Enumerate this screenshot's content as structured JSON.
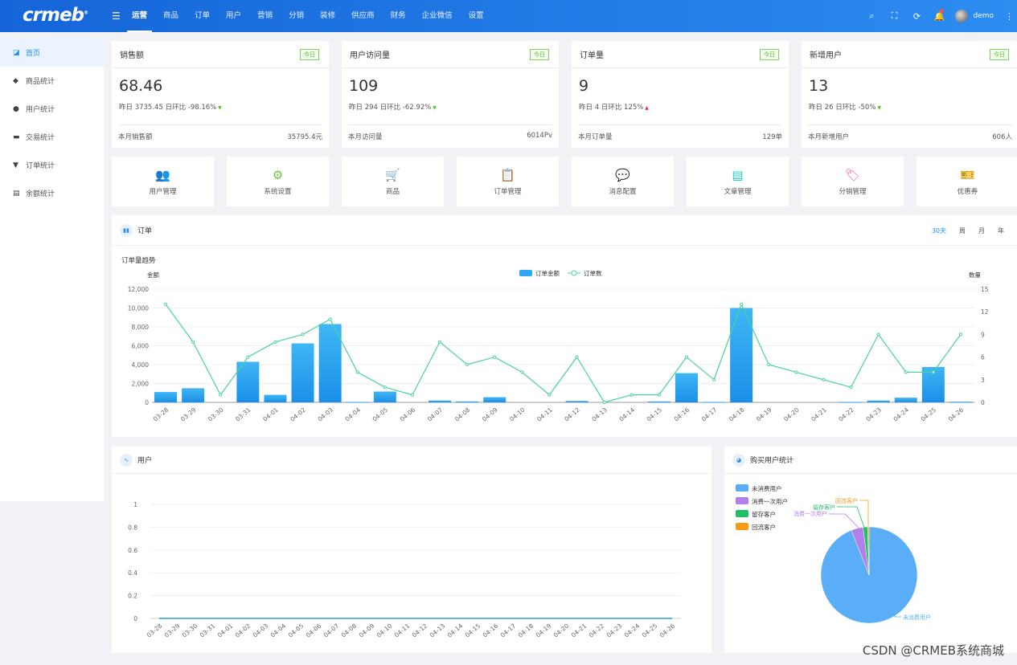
{
  "app": {
    "logo": "crmeb",
    "user": "demo"
  },
  "nav": [
    "运营",
    "商品",
    "订单",
    "用户",
    "营销",
    "分销",
    "装修",
    "供应商",
    "财务",
    "企业微信",
    "设置"
  ],
  "sidebar": [
    {
      "label": "首页",
      "icon": "dashboard-icon"
    },
    {
      "label": "商品统计",
      "icon": "bag-icon"
    },
    {
      "label": "用户统计",
      "icon": "user-icon"
    },
    {
      "label": "交易统计",
      "icon": "trade-icon"
    },
    {
      "label": "订单统计",
      "icon": "cart-icon"
    },
    {
      "label": "余额统计",
      "icon": "wallet-icon"
    }
  ],
  "stats": [
    {
      "title": "销售额",
      "badge": "今日",
      "value": "68.46",
      "yesterday": "昨日 3735.45",
      "ratio": "日环比 -98.16%",
      "trend": "down",
      "month_label": "本月销售额",
      "month_value": "35795.4元"
    },
    {
      "title": "用户访问量",
      "badge": "今日",
      "value": "109",
      "yesterday": "昨日 294",
      "ratio": "日环比 -62.92%",
      "trend": "down",
      "month_label": "本月访问量",
      "month_value": "6014Pv"
    },
    {
      "title": "订单量",
      "badge": "今日",
      "value": "9",
      "yesterday": "昨日 4",
      "ratio": "日环比 125%",
      "trend": "up",
      "month_label": "本月订单量",
      "month_value": "129单"
    },
    {
      "title": "新增用户",
      "badge": "今日",
      "value": "13",
      "yesterday": "昨日 26",
      "ratio": "日环比 -50%",
      "trend": "down",
      "month_label": "本月新增用户",
      "month_value": "606人"
    }
  ],
  "quick": [
    {
      "label": "用户管理",
      "glyph": "👥",
      "color": "#5aaef0"
    },
    {
      "label": "系统设置",
      "glyph": "⚙",
      "color": "#6cc93f"
    },
    {
      "label": "商品",
      "glyph": "🛒",
      "color": "#ff7a45"
    },
    {
      "label": "订单管理",
      "glyph": "📋",
      "color": "#b37feb"
    },
    {
      "label": "消息配置",
      "glyph": "💬",
      "color": "#f7b731"
    },
    {
      "label": "文章管理",
      "glyph": "▤",
      "color": "#1fc8c8"
    },
    {
      "label": "分销管理",
      "glyph": "🏷",
      "color": "#f759ab"
    },
    {
      "label": "优惠券",
      "glyph": "🎫",
      "color": "#faad14"
    }
  ],
  "order_panel": {
    "title": "订单",
    "ranges": [
      "30天",
      "周",
      "月",
      "年"
    ],
    "active_range": "30天"
  },
  "user_panel": {
    "title": "用户"
  },
  "buyer_panel": {
    "title": "购买用户统计"
  },
  "watermark": "CSDN @CRMEB系统商城",
  "chart_data": [
    {
      "type": "bar+line",
      "title": "订单量趋势",
      "legend": [
        "订单金额",
        "订单数"
      ],
      "ylabel_left": "金额",
      "ylabel_right": "数量",
      "ylim_left": [
        0,
        12000
      ],
      "ylim_right": [
        0,
        15
      ],
      "yticks_left": [
        "0",
        "2,000",
        "4,000",
        "6,000",
        "8,000",
        "10,000",
        "12,000"
      ],
      "yticks_right": [
        "0",
        "3",
        "6",
        "9",
        "12",
        "15"
      ],
      "categories": [
        "03-28",
        "03-29",
        "03-30",
        "03-31",
        "04-01",
        "04-02",
        "04-03",
        "04-04",
        "04-05",
        "04-06",
        "04-07",
        "04-08",
        "04-09",
        "04-10",
        "04-11",
        "04-12",
        "04-13",
        "04-14",
        "04-15",
        "04-16",
        "04-17",
        "04-18",
        "04-19",
        "04-20",
        "04-21",
        "04-22",
        "04-23",
        "04-24",
        "04-25",
        "04-26"
      ],
      "series": [
        {
          "name": "订单金额",
          "type": "bar",
          "values": [
            1100,
            1500,
            0,
            4300,
            800,
            6250,
            8300,
            50,
            1150,
            0,
            200,
            100,
            550,
            0,
            0,
            150,
            0,
            0,
            100,
            3100,
            50,
            10000,
            0,
            0,
            0,
            50,
            200,
            500,
            3750,
            68
          ]
        },
        {
          "name": "订单数",
          "type": "line",
          "values": [
            13,
            8,
            1,
            6,
            8,
            9,
            11,
            4,
            2,
            1,
            8,
            5,
            6,
            4,
            1,
            6,
            0,
            1,
            1,
            6,
            3,
            13,
            5,
            4,
            3,
            2,
            9,
            4,
            4,
            9
          ]
        }
      ]
    },
    {
      "type": "line",
      "title": "用户",
      "ylim": [
        0,
        1
      ],
      "yticks": [
        "0",
        "0.2",
        "0.4",
        "0.6",
        "0.8",
        "1"
      ],
      "categories": [
        "03-28",
        "03-29",
        "03-30",
        "03-31",
        "04-01",
        "04-02",
        "04-03",
        "04-04",
        "04-05",
        "04-06",
        "04-07",
        "04-08",
        "04-09",
        "04-10",
        "04-11",
        "04-12",
        "04-13",
        "04-14",
        "04-15",
        "04-16",
        "04-17",
        "04-18",
        "04-19",
        "04-20",
        "04-21",
        "04-22",
        "04-23",
        "04-24",
        "04-25",
        "04-26"
      ],
      "series": [
        {
          "name": "用户",
          "values": [
            0,
            0,
            0,
            0,
            0,
            0,
            0,
            0,
            0,
            0,
            0,
            0,
            0,
            0,
            0,
            0,
            0,
            0,
            0,
            0,
            0,
            0,
            0,
            0,
            0,
            0,
            0,
            0,
            0,
            0
          ]
        }
      ]
    },
    {
      "type": "pie",
      "title": "购买用户统计",
      "slices": [
        {
          "name": "未消费用户",
          "value": 94,
          "color": "#5aaef7"
        },
        {
          "name": "消费一次用户",
          "value": 4,
          "color": "#b37feb"
        },
        {
          "name": "留存客户",
          "value": 1.5,
          "color": "#1fbf6a"
        },
        {
          "name": "回流客户",
          "value": 0.5,
          "color": "#fa9a14"
        }
      ]
    }
  ]
}
